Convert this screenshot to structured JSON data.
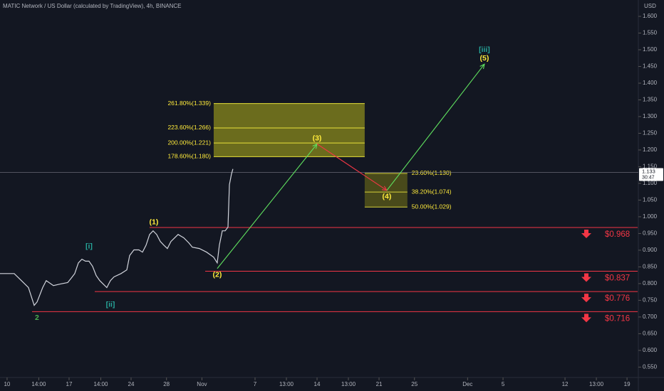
{
  "chart_data": {
    "type": "line",
    "title": "MATIC Network / US Dollar (calculated by TradingView), 4h, BINANCE",
    "currency": "USD",
    "color": "#d1d4dc",
    "x": [
      -0.8,
      0,
      0.8,
      1.61,
      2.41,
      3.06,
      3.38,
      4.02,
      4.42,
      5.23,
      6.03,
      6.84,
      7.24,
      7.64,
      8.05,
      8.45,
      8.85,
      9.25,
      9.65,
      10.06,
      10.46,
      11.26,
      11.67,
      12.07,
      12.87,
      13.52,
      13.84,
      14.32,
      14.88,
      15.29,
      15.69,
      16.09,
      16.49,
      16.89,
      17.3,
      17.7,
      18.1,
      18.5,
      19.31,
      19.95,
      20.52,
      20.92,
      21.72,
      22.53,
      23.33,
      23.73,
      23.97,
      24.3,
      24.62,
      24.94,
      25.1,
      25.34,
      25.5
    ],
    "values": [
      0.83,
      0.83,
      0.83,
      0.809,
      0.788,
      0.735,
      0.745,
      0.788,
      0.809,
      0.794,
      0.799,
      0.803,
      0.816,
      0.83,
      0.862,
      0.873,
      0.867,
      0.867,
      0.852,
      0.824,
      0.809,
      0.788,
      0.809,
      0.82,
      0.83,
      0.841,
      0.884,
      0.901,
      0.901,
      0.894,
      0.915,
      0.947,
      0.958,
      0.947,
      0.926,
      0.915,
      0.905,
      0.926,
      0.947,
      0.937,
      0.922,
      0.909,
      0.905,
      0.894,
      0.879,
      0.862,
      0.915,
      0.958,
      0.958,
      0.969,
      1.096,
      1.128,
      1.143
    ],
    "last_price": 1.133,
    "countdown": "30:47",
    "ylim": [
      0.521,
      1.649
    ],
    "xlim": [
      -0.8,
      71.2
    ],
    "yticks": [
      {
        "value": 0.55,
        "label": "0.550"
      },
      {
        "value": 0.6,
        "label": "0.600"
      },
      {
        "value": 0.65,
        "label": "0.650"
      },
      {
        "value": 0.7,
        "label": "0.700"
      },
      {
        "value": 0.75,
        "label": "0.750"
      },
      {
        "value": 0.8,
        "label": "0.800"
      },
      {
        "value": 0.85,
        "label": "0.850"
      },
      {
        "value": 0.9,
        "label": "0.900"
      },
      {
        "value": 0.95,
        "label": "0.950"
      },
      {
        "value": 1.0,
        "label": "1.000"
      },
      {
        "value": 1.05,
        "label": "1.050"
      },
      {
        "value": 1.1,
        "label": "1.100"
      },
      {
        "value": 1.15,
        "label": "1.150"
      },
      {
        "value": 1.2,
        "label": "1.200"
      },
      {
        "value": 1.25,
        "label": "1.250"
      },
      {
        "value": 1.3,
        "label": "1.300"
      },
      {
        "value": 1.35,
        "label": "1.350"
      },
      {
        "value": 1.4,
        "label": "1.400"
      },
      {
        "value": 1.45,
        "label": "1.450"
      },
      {
        "value": 1.5,
        "label": "1.500"
      },
      {
        "value": 1.55,
        "label": "1.550"
      },
      {
        "value": 1.6,
        "label": "1.600"
      }
    ],
    "xticks": [
      {
        "value": 0,
        "label": "10"
      },
      {
        "value": 3.58,
        "label": "14:00"
      },
      {
        "value": 7,
        "label": "17"
      },
      {
        "value": 10.58,
        "label": "14:00"
      },
      {
        "value": 14,
        "label": "24"
      },
      {
        "value": 18,
        "label": "28"
      },
      {
        "value": 22,
        "label": "Nov"
      },
      {
        "value": 28,
        "label": "7"
      },
      {
        "value": 31.54,
        "label": "13:00"
      },
      {
        "value": 35,
        "label": "14"
      },
      {
        "value": 38.54,
        "label": "13:00"
      },
      {
        "value": 42,
        "label": "21"
      },
      {
        "value": 46,
        "label": "25"
      },
      {
        "value": 52,
        "label": "Dec"
      },
      {
        "value": 56,
        "label": "5"
      },
      {
        "value": 63,
        "label": "12"
      },
      {
        "value": 66.54,
        "label": "13:00"
      },
      {
        "value": 70,
        "label": "19"
      }
    ],
    "zones": [
      {
        "x": [
          23.33,
          40.38
        ],
        "label_side": "left",
        "fill": "#8a8a1c",
        "line": "#e8e23a",
        "levels": [
          {
            "value": 1.339,
            "label": "261.80%(1.339)"
          },
          {
            "value": 1.266,
            "label": "223.60%(1.266)"
          },
          {
            "value": 1.221,
            "label": "200.00%(1.221)"
          },
          {
            "value": 1.18,
            "label": "178.60%(1.180)"
          }
        ]
      },
      {
        "x": [
          40.38,
          45.2
        ],
        "label_side": "right",
        "fill": "#5c5c1a",
        "line": "#d8d23a",
        "levels": [
          {
            "value": 1.13,
            "label": "23.60%(1.130)"
          },
          {
            "value": 1.074,
            "label": "38.20%(1.074)"
          },
          {
            "value": 1.029,
            "label": "50.00%(1.029)"
          }
        ]
      }
    ],
    "supports": [
      {
        "value": 0.968,
        "label": "$0.968",
        "start": 16.09
      },
      {
        "value": 0.837,
        "label": "$0.837",
        "start": 22.37
      },
      {
        "value": 0.776,
        "label": "$0.776",
        "start": 9.9
      },
      {
        "value": 0.716,
        "label": "$0.716",
        "start": 2.82
      }
    ],
    "support_color": "#f23645",
    "waves": [
      {
        "label": "(1)",
        "x": 16.57,
        "y": 0.966,
        "color": "#ffeb3b",
        "position": "above"
      },
      {
        "label": "(2)",
        "x": 23.73,
        "y": 0.845,
        "color": "#ffeb3b",
        "position": "below"
      },
      {
        "label": "(3)",
        "x": 35.0,
        "y": 1.218,
        "color": "#ffeb3b",
        "position": "above"
      },
      {
        "label": "(4)",
        "x": 42.88,
        "y": 1.079,
        "color": "#ffeb3b",
        "position": "below"
      },
      {
        "label": "(5)",
        "x": 53.9,
        "y": 1.457,
        "color": "#ffeb3b",
        "position": "above"
      },
      {
        "label": "[i]",
        "x": 9.25,
        "y": 0.894,
        "color": "#26a69a",
        "position": "above"
      },
      {
        "label": "[ii]",
        "x": 11.67,
        "y": 0.756,
        "color": "#26a69a",
        "position": "below"
      },
      {
        "label": "[iii]",
        "x": 53.9,
        "y": 1.482,
        "color": "#26a69a",
        "position": "above"
      },
      {
        "label": "2",
        "x": 3.38,
        "y": 0.716,
        "color": "#4caf50",
        "position": "below"
      }
    ],
    "arrows": [
      {
        "from": 1,
        "to": 2,
        "color": "#5fe05f"
      },
      {
        "from": 2,
        "to": 3,
        "color": "#f23645"
      },
      {
        "from": 3,
        "to": 4,
        "color": "#5fe05f"
      }
    ]
  }
}
